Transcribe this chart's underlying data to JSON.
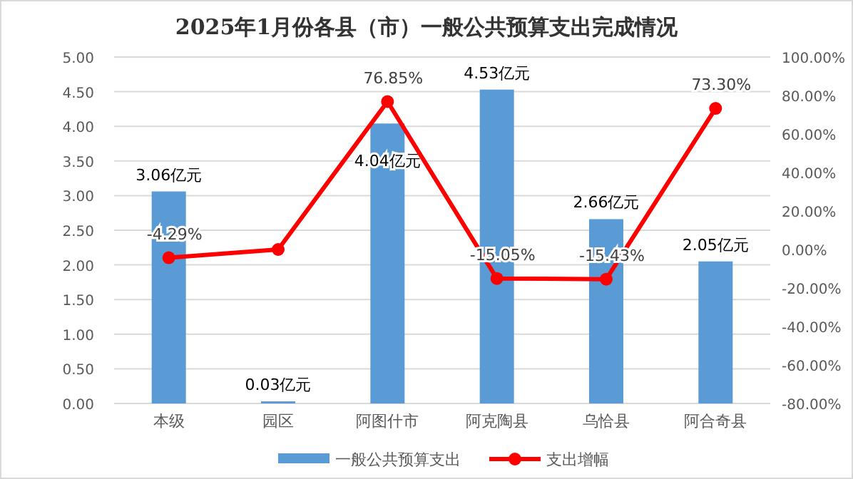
{
  "chart_data": {
    "type": "bar",
    "title": "2025年1月份各县（市）一般公共预算支出完成情况",
    "categories": [
      "本级",
      "园区",
      "阿图什市",
      "阿克陶县",
      "乌恰县",
      "阿合奇县"
    ],
    "series": [
      {
        "name": "一般公共预算支出",
        "color": "#5b9bd5",
        "values": [
          3.06,
          0.03,
          4.04,
          4.53,
          2.66,
          2.05
        ],
        "value_labels": [
          "3.06亿元",
          "0.03亿元",
          "4.04亿元",
          "4.53亿元",
          "2.66亿元",
          "2.05亿元"
        ]
      },
      {
        "name": "支出增幅",
        "type": "line",
        "axis": "y2",
        "color": "#ff0000",
        "marker": "circle",
        "values": [
          -4.29,
          0,
          76.85,
          -15.05,
          -15.43,
          73.3
        ],
        "value_labels": [
          "-4.29%",
          null,
          "76.85%",
          "-15.05%",
          "-15.43%",
          "73.30%"
        ]
      }
    ],
    "ylim": [
      0,
      5
    ],
    "yticks": [
      {
        "value": 0,
        "label": "0.00"
      },
      {
        "value": 0.5,
        "label": "0.50"
      },
      {
        "value": 1,
        "label": "1.00"
      },
      {
        "value": 1.5,
        "label": "1.50"
      },
      {
        "value": 2,
        "label": "2.00"
      },
      {
        "value": 2.5,
        "label": "2.50"
      },
      {
        "value": 3,
        "label": "3.00"
      },
      {
        "value": 3.5,
        "label": "3.50"
      },
      {
        "value": 4,
        "label": "4.00"
      },
      {
        "value": 4.5,
        "label": "4.50"
      },
      {
        "value": 5,
        "label": "5.00"
      }
    ],
    "y2lim": [
      -80,
      100
    ],
    "y2ticks": [
      {
        "value": -80,
        "label": "-80.00%"
      },
      {
        "value": -60,
        "label": "-60.00%"
      },
      {
        "value": -40,
        "label": "-40.00%"
      },
      {
        "value": -20,
        "label": "-20.00%"
      },
      {
        "value": 0,
        "label": "0.00%"
      },
      {
        "value": 20,
        "label": "20.00%"
      },
      {
        "value": 40,
        "label": "40.00%"
      },
      {
        "value": 60,
        "label": "60.00%"
      },
      {
        "value": 80,
        "label": "80.00%"
      },
      {
        "value": 100,
        "label": "100.00%"
      }
    ],
    "grid": "y",
    "legend": "bottom"
  }
}
